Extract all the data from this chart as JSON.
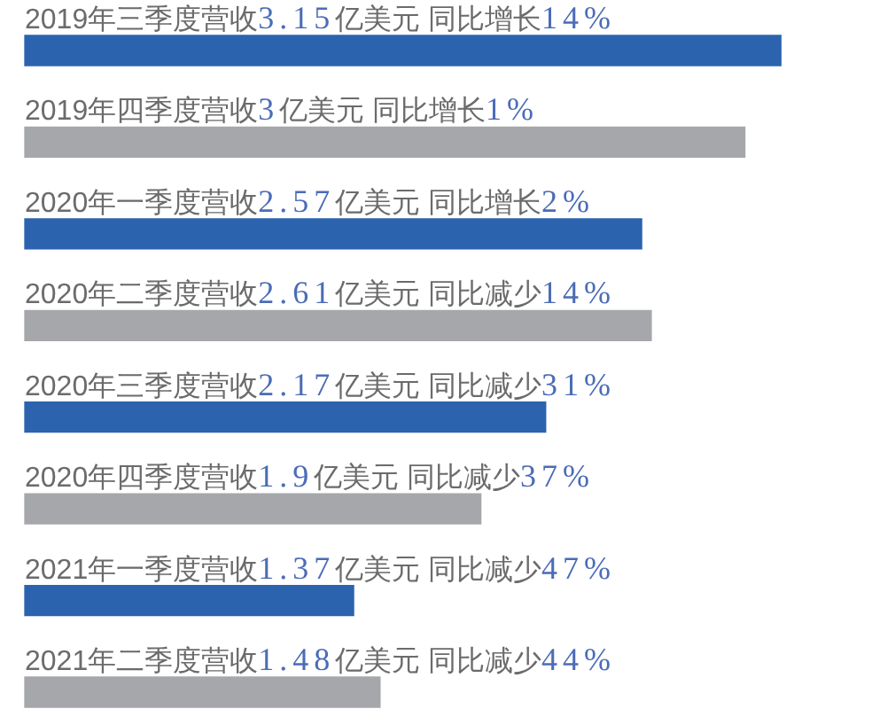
{
  "chart_data": {
    "type": "bar",
    "orientation": "horizontal",
    "categories": [
      "2019年三季度",
      "2019年四季度",
      "2020年一季度",
      "2020年二季度",
      "2020年三季度",
      "2020年四季度",
      "2021年一季度",
      "2021年二季度"
    ],
    "values": [
      3.15,
      3,
      2.57,
      2.61,
      2.17,
      1.9,
      1.37,
      1.48
    ],
    "colors": [
      "#2b63ae",
      "#a6a7ab",
      "#2b63ae",
      "#a6a7ab",
      "#2b63ae",
      "#a6a7ab",
      "#2b63ae",
      "#a6a7ab"
    ],
    "value_labels": [
      "营收3.15亿美元 同比增长14%",
      "营收3亿美元 同比增长1%",
      "营收2.57亿美元 同比增长2%",
      "营收2.61亿美元 同比减少14%",
      "营收2.17亿美元 同比减少31%",
      "营收1.9亿美元 同比减少37%",
      "营收1.37亿美元 同比减少47%",
      "营收1.48亿美元 同比减少44%"
    ],
    "grid": false,
    "legend": false,
    "tick_labels": "y"
  }
}
